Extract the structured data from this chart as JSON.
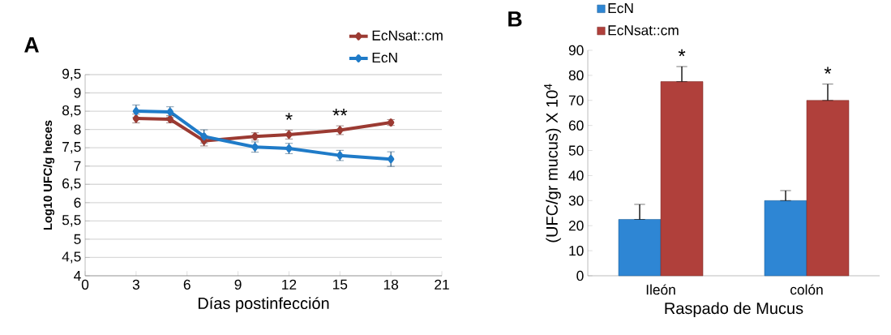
{
  "chart_data": [
    {
      "type": "line",
      "title": "A",
      "xlabel": "Días postinfección",
      "ylabel": "Log10 UFC/g heces",
      "xlim": [
        0,
        21
      ],
      "xticks": [
        0,
        3,
        6,
        9,
        12,
        15,
        18,
        21
      ],
      "ylim": [
        4,
        9.5
      ],
      "yticks": [
        4,
        {
          "value": 4.5,
          "label": "4,5"
        },
        5,
        {
          "value": 5.5,
          "label": "5,5"
        },
        6,
        {
          "value": 6.5,
          "label": "6,5"
        },
        7,
        {
          "value": 7.5,
          "label": "7,5"
        },
        8,
        {
          "value": 8.5,
          "label": "8,5"
        },
        9,
        {
          "value": 9.5,
          "label": "9,5"
        }
      ],
      "x": [
        3,
        5,
        7,
        10,
        12,
        15,
        18
      ],
      "series": [
        {
          "name": "EcNsat::cm",
          "color": "#9b3a32",
          "values": [
            8.3,
            8.28,
            7.69,
            7.81,
            7.86,
            7.98,
            8.19
          ],
          "errors": [
            0.12,
            0.1,
            0.14,
            0.1,
            0.12,
            0.12,
            0.08
          ]
        },
        {
          "name": "EcN",
          "color": "#1f7bc8",
          "values": [
            8.5,
            8.48,
            7.81,
            7.52,
            7.48,
            7.29,
            7.19
          ],
          "errors": [
            0.17,
            0.14,
            0.18,
            0.14,
            0.14,
            0.14,
            0.2
          ]
        }
      ],
      "marker": "diamond",
      "line_style": "solid",
      "legend": "top right",
      "grid": "y",
      "annotations": [
        {
          "text": "*",
          "x": 12,
          "y": 7.86
        },
        {
          "text": "**",
          "x": 15,
          "y": 7.98
        }
      ]
    },
    {
      "type": "bar",
      "title": "B",
      "xlabel": "Raspado de Mucus",
      "ylabel": "(UFC/gr mucus) X 10$^{4}$",
      "categories": [
        "Ileón",
        "colón"
      ],
      "ylim": [
        0,
        90
      ],
      "yticks": [
        0,
        10,
        20,
        30,
        40,
        50,
        60,
        70,
        80,
        90
      ],
      "series": [
        {
          "name": "EcN",
          "color": "#2e86d4",
          "values": [
            22.5,
            30
          ],
          "errors": [
            [
              22.5,
              28.5
            ],
            [
              30,
              34
            ]
          ]
        },
        {
          "name": "EcNsat::cm",
          "color": "#b0403b",
          "values": [
            77.5,
            70
          ],
          "errors": [
            [
              77.5,
              83.5
            ],
            [
              70,
              76.5
            ]
          ]
        }
      ],
      "legend": "top",
      "grid": false,
      "annotations": [
        {
          "text": "*",
          "x": "Ileón",
          "y": 77.5
        },
        {
          "text": "*",
          "x": "colón",
          "y": 70
        }
      ]
    }
  ]
}
